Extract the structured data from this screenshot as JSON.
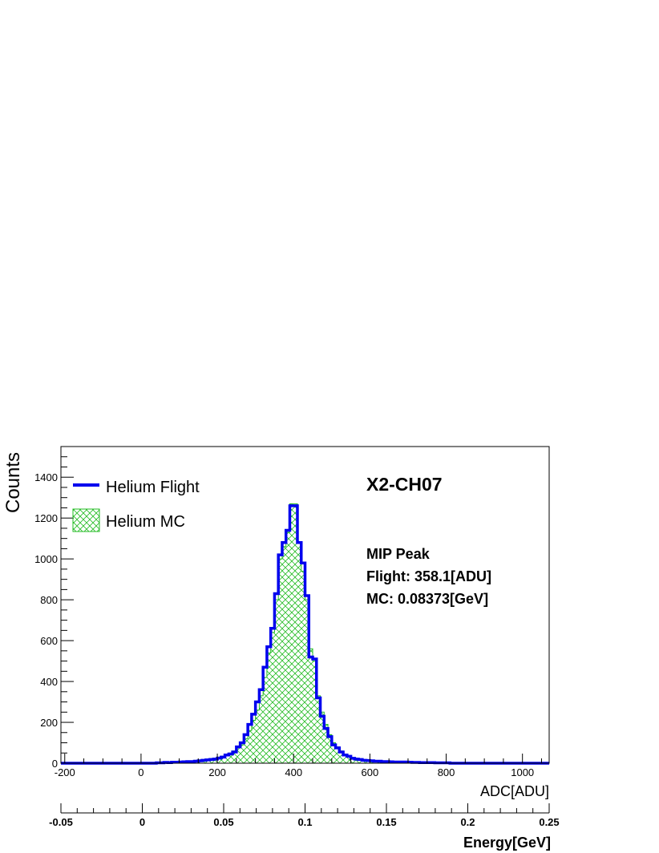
{
  "chart_data": {
    "type": "histogram",
    "title": "X2-CH07",
    "xlabel": "ADC[ADU]",
    "ylabel": "Counts",
    "secondary_xlabel": "Energy[GeV]",
    "xlim": [
      -210,
      1070
    ],
    "ylim": [
      0,
      1550
    ],
    "secondary_xlim": [
      -0.05,
      0.25
    ],
    "x_ticks": [
      -200,
      0,
      200,
      400,
      600,
      800,
      1000
    ],
    "y_ticks": [
      0,
      200,
      400,
      600,
      800,
      1000,
      1200,
      1400
    ],
    "secondary_x_ticks": [
      -0.05,
      0,
      0.05,
      0.1,
      0.15,
      0.2,
      0.25
    ],
    "x_tick_labels": [
      "-200",
      "0",
      "200",
      "400",
      "600",
      "800",
      "1000"
    ],
    "y_tick_labels": [
      "0",
      "200",
      "400",
      "600",
      "800",
      "1000",
      "1200",
      "1400"
    ],
    "secondary_x_tick_labels": [
      "-0.05",
      "0",
      "0.05",
      "0.1",
      "0.15",
      "0.2",
      "0.25"
    ],
    "grid": false,
    "legend_position": "top-left",
    "bin_edges": [
      -210,
      1070
    ],
    "bin_width": 10,
    "series": [
      {
        "name": "Helium Flight",
        "style": "line",
        "color": "#0000ee",
        "x": [
          40,
          50,
          60,
          70,
          80,
          90,
          100,
          110,
          120,
          130,
          140,
          150,
          160,
          170,
          180,
          190,
          200,
          210,
          220,
          230,
          240,
          250,
          260,
          270,
          280,
          290,
          300,
          310,
          320,
          330,
          340,
          350,
          360,
          370,
          380,
          390,
          400,
          410,
          420,
          430,
          440,
          450,
          460,
          470,
          480,
          490,
          500,
          510,
          520,
          530,
          540,
          550,
          560,
          570,
          580,
          590,
          600,
          610,
          620,
          630,
          640,
          650,
          660,
          670,
          680,
          690,
          700,
          710,
          720,
          730,
          740,
          750,
          760,
          770,
          780,
          790,
          800
        ],
        "y": [
          2,
          2,
          4,
          3,
          5,
          5,
          6,
          7,
          8,
          8,
          10,
          12,
          14,
          16,
          18,
          20,
          25,
          30,
          40,
          45,
          55,
          80,
          100,
          140,
          190,
          240,
          300,
          360,
          470,
          570,
          660,
          830,
          1020,
          1080,
          1140,
          1260,
          1260,
          1080,
          980,
          820,
          520,
          510,
          320,
          230,
          170,
          130,
          90,
          75,
          55,
          40,
          34,
          24,
          20,
          18,
          14,
          13,
          12,
          10,
          10,
          8,
          8,
          7,
          6,
          6,
          6,
          6,
          5,
          4,
          4,
          3,
          3,
          3,
          3,
          2,
          2,
          2,
          2
        ]
      },
      {
        "name": "Helium MC",
        "style": "hatched",
        "color": "#22bb22",
        "x": [
          40,
          50,
          60,
          70,
          80,
          90,
          100,
          110,
          120,
          130,
          140,
          150,
          160,
          170,
          180,
          190,
          200,
          210,
          220,
          230,
          240,
          250,
          260,
          270,
          280,
          290,
          300,
          310,
          320,
          330,
          340,
          350,
          360,
          370,
          380,
          390,
          400,
          410,
          420,
          430,
          440,
          450,
          460,
          470,
          480,
          490,
          500,
          510,
          520,
          530,
          540,
          550,
          560,
          570,
          580,
          590,
          600,
          610,
          620,
          630,
          640,
          650,
          660,
          670,
          680,
          690,
          700,
          710,
          720,
          730,
          740,
          750,
          760,
          770,
          780,
          790,
          800
        ],
        "y": [
          4,
          4,
          5,
          6,
          7,
          8,
          9,
          10,
          11,
          12,
          14,
          16,
          18,
          20,
          23,
          25,
          30,
          35,
          45,
          50,
          60,
          75,
          90,
          120,
          160,
          210,
          260,
          330,
          420,
          540,
          640,
          800,
          1000,
          1060,
          1130,
          1270,
          1270,
          1080,
          940,
          800,
          560,
          500,
          330,
          250,
          190,
          140,
          100,
          80,
          60,
          45,
          38,
          28,
          24,
          20,
          16,
          15,
          14,
          12,
          12,
          10,
          10,
          9,
          8,
          8,
          8,
          7,
          6,
          5,
          5,
          4,
          4,
          4,
          4,
          3,
          3,
          3,
          3
        ]
      }
    ],
    "annotations": [
      "MIP Peak",
      "Flight: 358.1[ADU]",
      "MC: 0.08373[GeV]"
    ]
  }
}
